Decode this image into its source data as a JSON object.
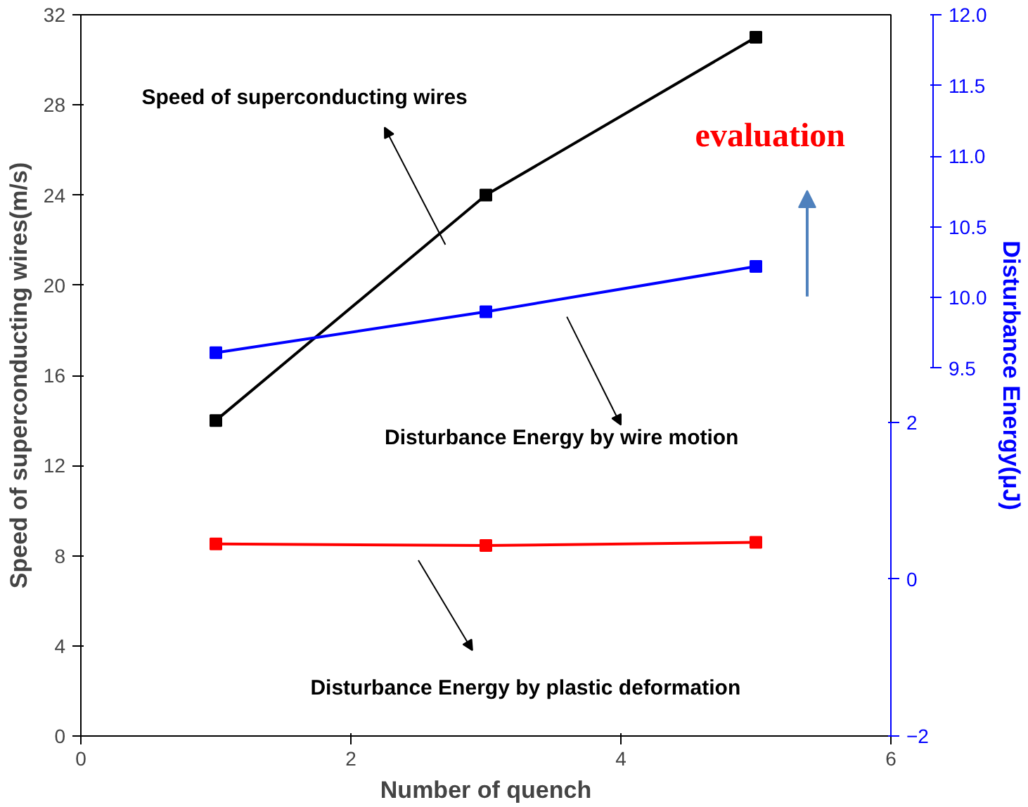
{
  "chart_data": {
    "type": "line",
    "xlabel": "Number of quench",
    "ylabel": "Speed of superconducting wires(m/s)",
    "y2label": "Disturbance Energy(μJ)",
    "x": [
      1,
      3,
      5
    ],
    "xlim": [
      0,
      6
    ],
    "xticks": [
      0,
      2,
      4,
      6
    ],
    "ylim": [
      0,
      32
    ],
    "yticks": [
      0,
      4,
      8,
      12,
      16,
      20,
      24,
      28,
      32
    ],
    "y2lim": [
      -2,
      7.2
    ],
    "y2ticks": [
      -2,
      0,
      2
    ],
    "y3lim": [
      6.9,
      12
    ],
    "y3ticks": [
      9.5,
      {
        "value": 10,
        "label": "10.0"
      },
      10.5,
      {
        "value": 11,
        "label": "11.0"
      },
      11.5,
      {
        "value": 12,
        "label": "12.0"
      }
    ],
    "marker": "square",
    "grid": false,
    "series": [
      {
        "color": "#000000",
        "values": [
          14,
          24,
          31
        ]
      },
      {
        "color": "#0000ff",
        "values": [
          9.61,
          9.9,
          10.22
        ],
        "axis": "y3"
      },
      {
        "color": "#ff0000",
        "values": [
          0.45,
          0.43,
          0.47
        ],
        "axis": "y2"
      }
    ],
    "annotations": [
      "Speed of superconducting wires",
      "Disturbance Energy by wire motion",
      "Disturbance Energy by plastic deformation",
      "evaluation"
    ]
  }
}
